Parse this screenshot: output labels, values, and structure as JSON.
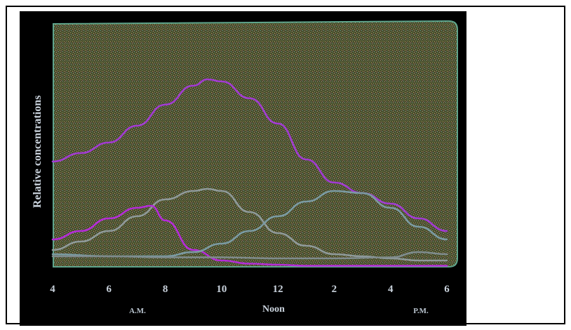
{
  "chart_data": {
    "type": "line",
    "title": "",
    "xlabel": "",
    "ylabel": "Relative concentrations",
    "x_ticks": [
      "4",
      "6",
      "8",
      "10",
      "12",
      "2",
      "4",
      "6"
    ],
    "x_tick_hours": [
      4,
      6,
      8,
      10,
      12,
      14,
      16,
      18
    ],
    "period_labels": {
      "am": "A.M.",
      "noon": "Noon",
      "pm": "P.M."
    },
    "xlim": [
      4,
      18
    ],
    "ylim": [
      0,
      10
    ],
    "grid": false,
    "legend": "none",
    "series": [
      {
        "color": "#a23bd3",
        "hours": [
          4,
          5,
          6,
          7,
          8,
          9,
          9.5,
          10,
          11,
          12,
          13,
          14,
          15,
          16,
          17,
          18
        ],
        "values": [
          5.0,
          5.4,
          5.9,
          6.7,
          7.7,
          8.6,
          8.9,
          8.8,
          8.0,
          6.8,
          5.1,
          4.0,
          3.5,
          3.0,
          2.3,
          1.7
        ]
      },
      {
        "color": "#8f9a9a",
        "hours": [
          4,
          5,
          6,
          7,
          8,
          9,
          9.5,
          10,
          11,
          12,
          13,
          14,
          15,
          16,
          17,
          18
        ],
        "values": [
          0.8,
          1.2,
          1.7,
          2.4,
          3.2,
          3.6,
          3.7,
          3.6,
          2.6,
          1.6,
          1.0,
          0.6,
          0.5,
          0.4,
          0.3,
          0.3
        ]
      },
      {
        "color": "#b52cd9",
        "hours": [
          4,
          5,
          6,
          7,
          7.5,
          8,
          9,
          10,
          11,
          12,
          13,
          14,
          15,
          16,
          17,
          18
        ],
        "values": [
          1.3,
          1.7,
          2.3,
          2.8,
          2.9,
          2.2,
          0.8,
          0.3,
          0.15,
          0.1,
          0.05,
          0.05,
          0.05,
          0.05,
          0.05,
          0.05
        ]
      },
      {
        "color": "#7b9ba3",
        "hours": [
          4,
          6,
          8,
          9,
          10,
          11,
          12,
          13,
          14,
          15,
          16,
          17,
          18
        ],
        "values": [
          0.6,
          0.5,
          0.5,
          0.7,
          1.1,
          1.7,
          2.4,
          3.1,
          3.6,
          3.5,
          2.8,
          1.9,
          1.3
        ]
      },
      {
        "color": "#7f8c8d",
        "hours": [
          4,
          6,
          8,
          10,
          12,
          14,
          16,
          17,
          18
        ],
        "values": [
          0.5,
          0.5,
          0.45,
          0.45,
          0.4,
          0.4,
          0.45,
          0.7,
          0.6
        ]
      }
    ]
  },
  "colors": {
    "background": "#000000",
    "plot_fill": "#4a4d2c",
    "plot_edge": "#5fa58c",
    "text": "#c9d2dc"
  }
}
